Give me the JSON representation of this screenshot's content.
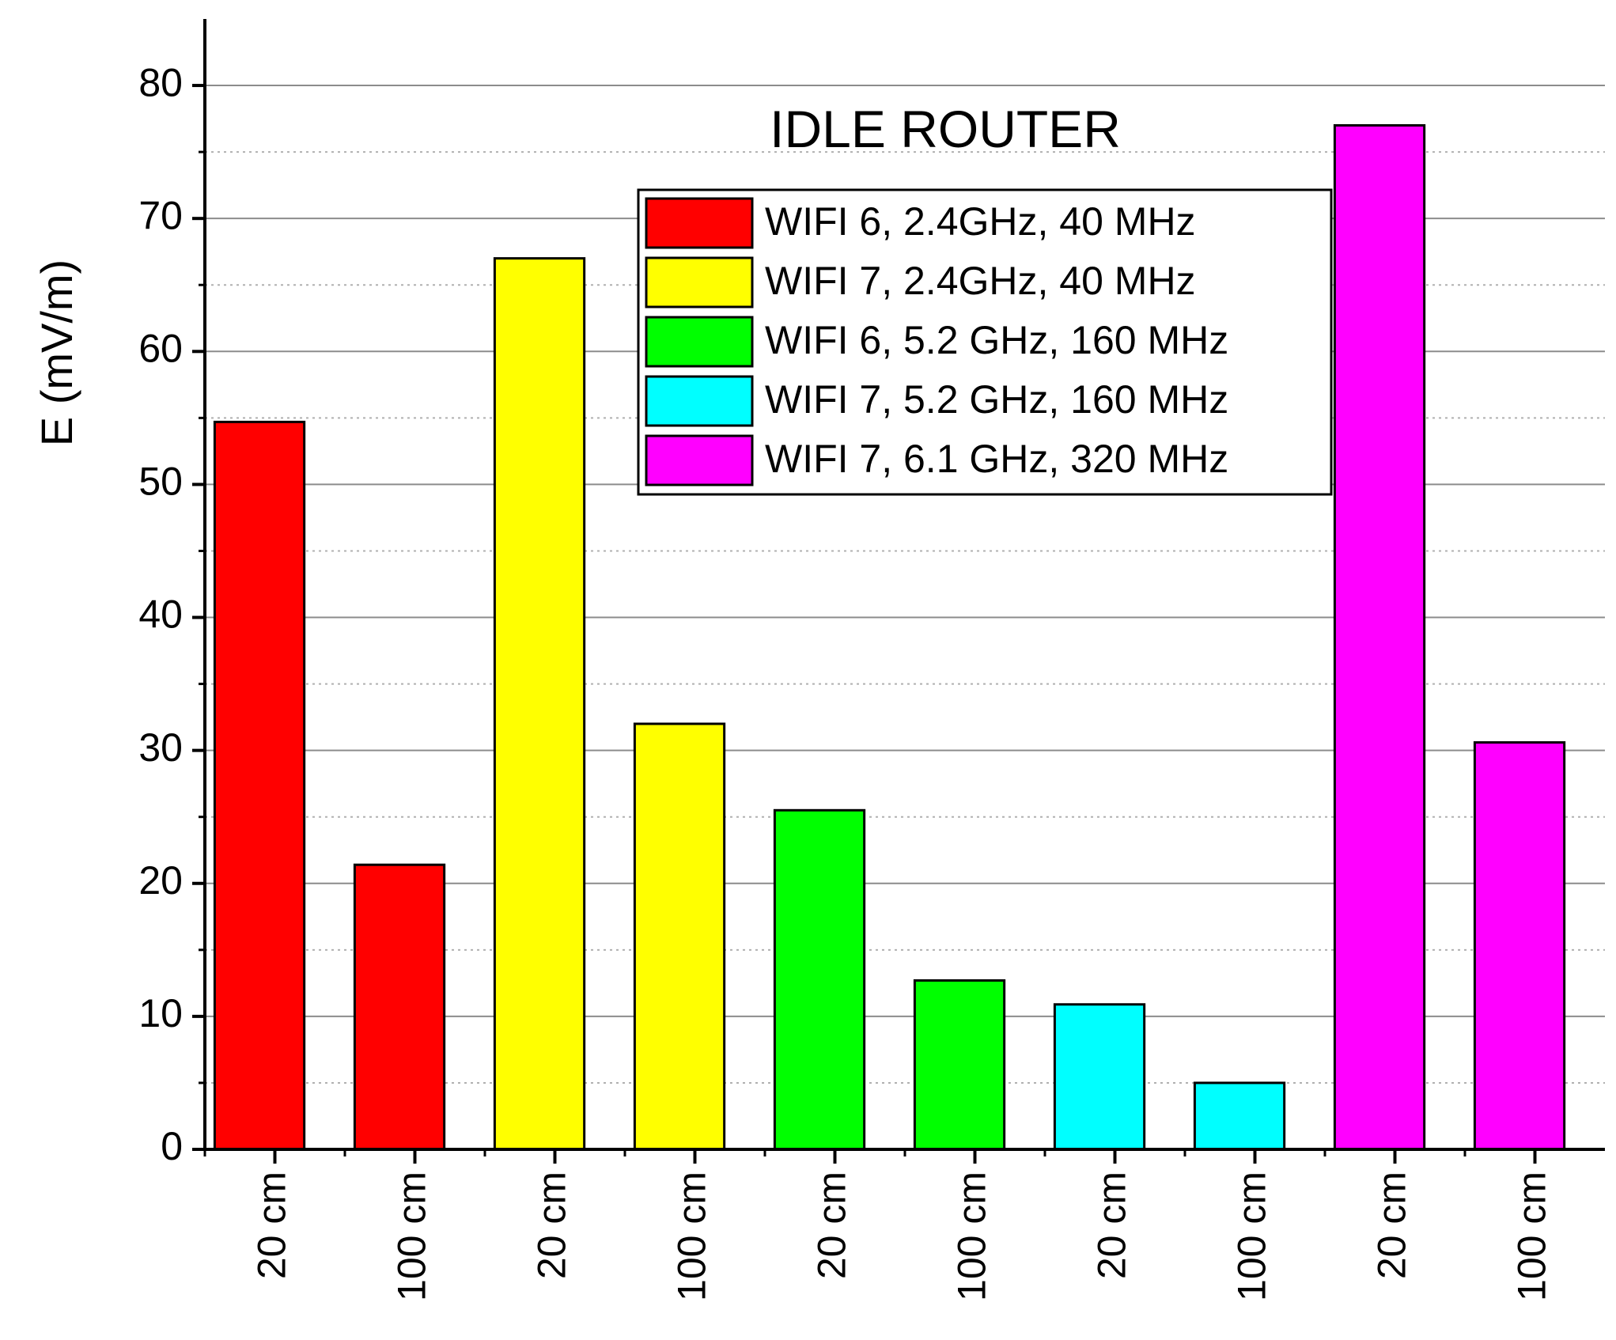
{
  "chart_data": {
    "type": "bar",
    "title": "IDLE  ROUTER",
    "y_label": "E (mV/m)",
    "categories": [
      "20 cm",
      "100 cm",
      "20 cm",
      "100 cm",
      "20 cm",
      "100 cm",
      "20 cm",
      "100 cm",
      "20 cm",
      "100 cm"
    ],
    "series": [
      {
        "name": "WIFI 6, 2.4GHz, 40 MHz",
        "color": "#ff0000",
        "values": [
          54.7,
          21.4,
          null,
          null,
          null,
          null,
          null,
          null,
          null,
          null
        ]
      },
      {
        "name": "WIFI 7, 2.4GHz, 40 MHz",
        "color": "#ffff00",
        "values": [
          null,
          null,
          67,
          32,
          null,
          null,
          null,
          null,
          null,
          null
        ]
      },
      {
        "name": "WIFI 6, 5.2 GHz, 160 MHz",
        "color": "#00ff00",
        "values": [
          null,
          null,
          null,
          null,
          25.5,
          12.7,
          null,
          null,
          null,
          null
        ]
      },
      {
        "name": "WIFI 7, 5.2 GHz, 160 MHz",
        "color": "#00ffff",
        "values": [
          null,
          null,
          null,
          null,
          null,
          null,
          10.9,
          5,
          null,
          null
        ]
      },
      {
        "name": "WIFI 7, 6.1 GHz, 320 MHz",
        "color": "#ff00ff",
        "values": [
          null,
          null,
          null,
          null,
          null,
          null,
          null,
          null,
          77,
          30.6
        ]
      }
    ],
    "ylim": [
      0,
      85
    ],
    "yticks": [
      0,
      10,
      20,
      30,
      40,
      50,
      60,
      70,
      80
    ],
    "grid": true,
    "legend": "top-center"
  }
}
